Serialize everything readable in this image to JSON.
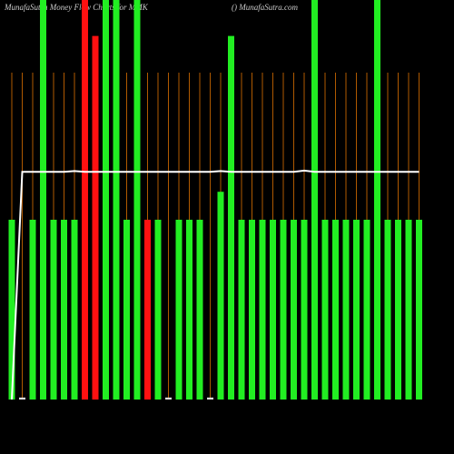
{
  "chart_data": {
    "type": "bar",
    "title": "MunafaSutra  Money Flow  Charts for MMK",
    "subtitle": "() MunafaSutra.com",
    "categories": [
      null,
      null,
      null,
      null,
      null,
      null,
      null,
      null,
      null,
      null,
      null,
      null,
      null,
      null,
      null,
      null,
      null,
      null,
      null,
      null,
      null,
      null,
      null,
      null,
      null,
      null,
      null,
      null,
      null,
      null,
      null,
      null,
      null,
      null,
      null,
      null,
      null,
      null,
      null,
      null
    ],
    "values": [
      45,
      0.5,
      45,
      100,
      45,
      45,
      45,
      100,
      91,
      100,
      100,
      45,
      100,
      45,
      45,
      0.5,
      45,
      45,
      45,
      0.5,
      52,
      91,
      45,
      45,
      45,
      45,
      45,
      45,
      45,
      100,
      45,
      45,
      45,
      45,
      45,
      100,
      45,
      45,
      45,
      45
    ],
    "colors": [
      "#22ee22",
      "#dddddd",
      "#22ee22",
      "#22ee22",
      "#22ee22",
      "#22ee22",
      "#22ee22",
      "#ff1111",
      "#ff1111",
      "#22ee22",
      "#22ee22",
      "#22ee22",
      "#22ee22",
      "#ff1111",
      "#22ee22",
      "#dddddd",
      "#22ee22",
      "#22ee22",
      "#22ee22",
      "#dddddd",
      "#22ee22",
      "#22ee22",
      "#22ee22",
      "#22ee22",
      "#22ee22",
      "#22ee22",
      "#22ee22",
      "#22ee22",
      "#22ee22",
      "#22ee22",
      "#22ee22",
      "#22ee22",
      "#22ee22",
      "#22ee22",
      "#22ee22",
      "#22ee22",
      "#22ee22",
      "#22ee22",
      "#22ee22",
      "#22ee22"
    ],
    "line": {
      "color": "#ffffff",
      "values": [
        0,
        57,
        57,
        57,
        57,
        57,
        57.2,
        57,
        57,
        57,
        57,
        57,
        57,
        57,
        57,
        57,
        57,
        57,
        57,
        57,
        57.2,
        57,
        57,
        57,
        57,
        57,
        57,
        57,
        57.3,
        57,
        57,
        57,
        57,
        57,
        57,
        57,
        57,
        57,
        57,
        57
      ]
    },
    "ylim": [
      0,
      100
    ],
    "grid": true,
    "grid_color": "#b05a00"
  }
}
